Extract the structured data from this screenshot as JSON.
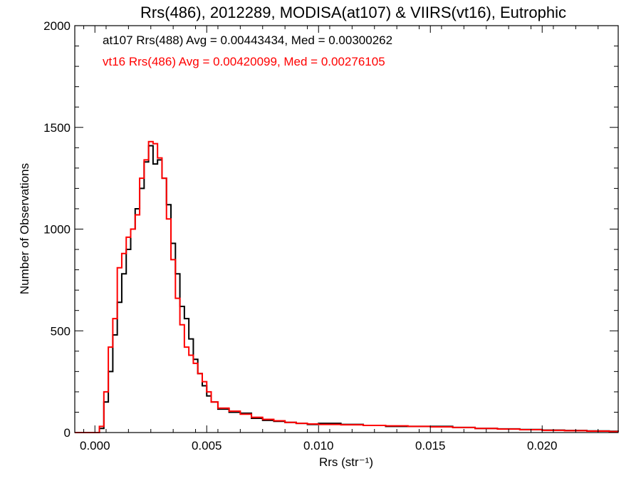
{
  "chart_data": {
    "type": "line",
    "title": "Rrs(486), 2012289, MODISA(at107) & VIIRS(vt16), Eutrophic",
    "xlabel": "Rrs (str⁻¹)",
    "ylabel": "Number of Observations",
    "xlim": [
      -0.0009,
      0.0234
    ],
    "ylim": [
      0,
      2000
    ],
    "x_ticks": [
      "0.000",
      "0.005",
      "0.010",
      "0.015",
      "0.020"
    ],
    "y_ticks": [
      "0",
      "500",
      "1000",
      "1500",
      "2000"
    ],
    "grid": false,
    "annotations": [
      {
        "text": "at107 Rrs(488) Avg = 0.00443434, Med = 0.00300262",
        "color": "#000000"
      },
      {
        "text": "vt16 Rrs(486) Avg = 0.00420099, Med = 0.00276105",
        "color": "#ff0000"
      }
    ],
    "series": [
      {
        "color": "#000000",
        "x": [
          -0.0009,
          0.0,
          0.0002,
          0.0004,
          0.0006,
          0.0008,
          0.001,
          0.0012,
          0.0014,
          0.0016,
          0.0018,
          0.002,
          0.0022,
          0.0024,
          0.0026,
          0.0028,
          0.003,
          0.0032,
          0.0034,
          0.0036,
          0.0038,
          0.004,
          0.0042,
          0.0044,
          0.0046,
          0.0048,
          0.005,
          0.0052,
          0.0055,
          0.006,
          0.0065,
          0.007,
          0.0075,
          0.008,
          0.0085,
          0.009,
          0.0095,
          0.01,
          0.011,
          0.012,
          0.013,
          0.014,
          0.015,
          0.016,
          0.017,
          0.018,
          0.019,
          0.02,
          0.021,
          0.022,
          0.023,
          0.0234
        ],
        "y": [
          0,
          0,
          20,
          150,
          300,
          480,
          640,
          780,
          900,
          1000,
          1100,
          1200,
          1330,
          1410,
          1320,
          1340,
          1250,
          1120,
          930,
          780,
          620,
          560,
          460,
          360,
          290,
          230,
          180,
          150,
          115,
          100,
          95,
          70,
          60,
          55,
          50,
          45,
          40,
          45,
          40,
          35,
          30,
          30,
          30,
          25,
          20,
          18,
          15,
          12,
          10,
          8,
          6,
          5
        ]
      },
      {
        "color": "#ff0000",
        "x": [
          -0.0009,
          0.0,
          0.0002,
          0.0004,
          0.0006,
          0.0008,
          0.001,
          0.0012,
          0.0014,
          0.0016,
          0.0018,
          0.002,
          0.0022,
          0.0024,
          0.0026,
          0.0028,
          0.003,
          0.0032,
          0.0034,
          0.0036,
          0.0038,
          0.004,
          0.0042,
          0.0044,
          0.0046,
          0.0048,
          0.005,
          0.0052,
          0.0055,
          0.006,
          0.0065,
          0.007,
          0.0075,
          0.008,
          0.0085,
          0.009,
          0.0095,
          0.01,
          0.011,
          0.012,
          0.013,
          0.014,
          0.015,
          0.016,
          0.017,
          0.018,
          0.019,
          0.02,
          0.021,
          0.022,
          0.023,
          0.0234
        ],
        "y": [
          0,
          0,
          30,
          200,
          420,
          560,
          810,
          880,
          960,
          1000,
          1070,
          1250,
          1340,
          1430,
          1420,
          1350,
          1250,
          1050,
          850,
          660,
          530,
          420,
          380,
          340,
          290,
          250,
          200,
          150,
          120,
          105,
          90,
          75,
          65,
          58,
          50,
          45,
          42,
          40,
          38,
          35,
          33,
          30,
          28,
          25,
          20,
          17,
          14,
          11,
          9,
          7,
          5,
          4
        ]
      }
    ]
  }
}
